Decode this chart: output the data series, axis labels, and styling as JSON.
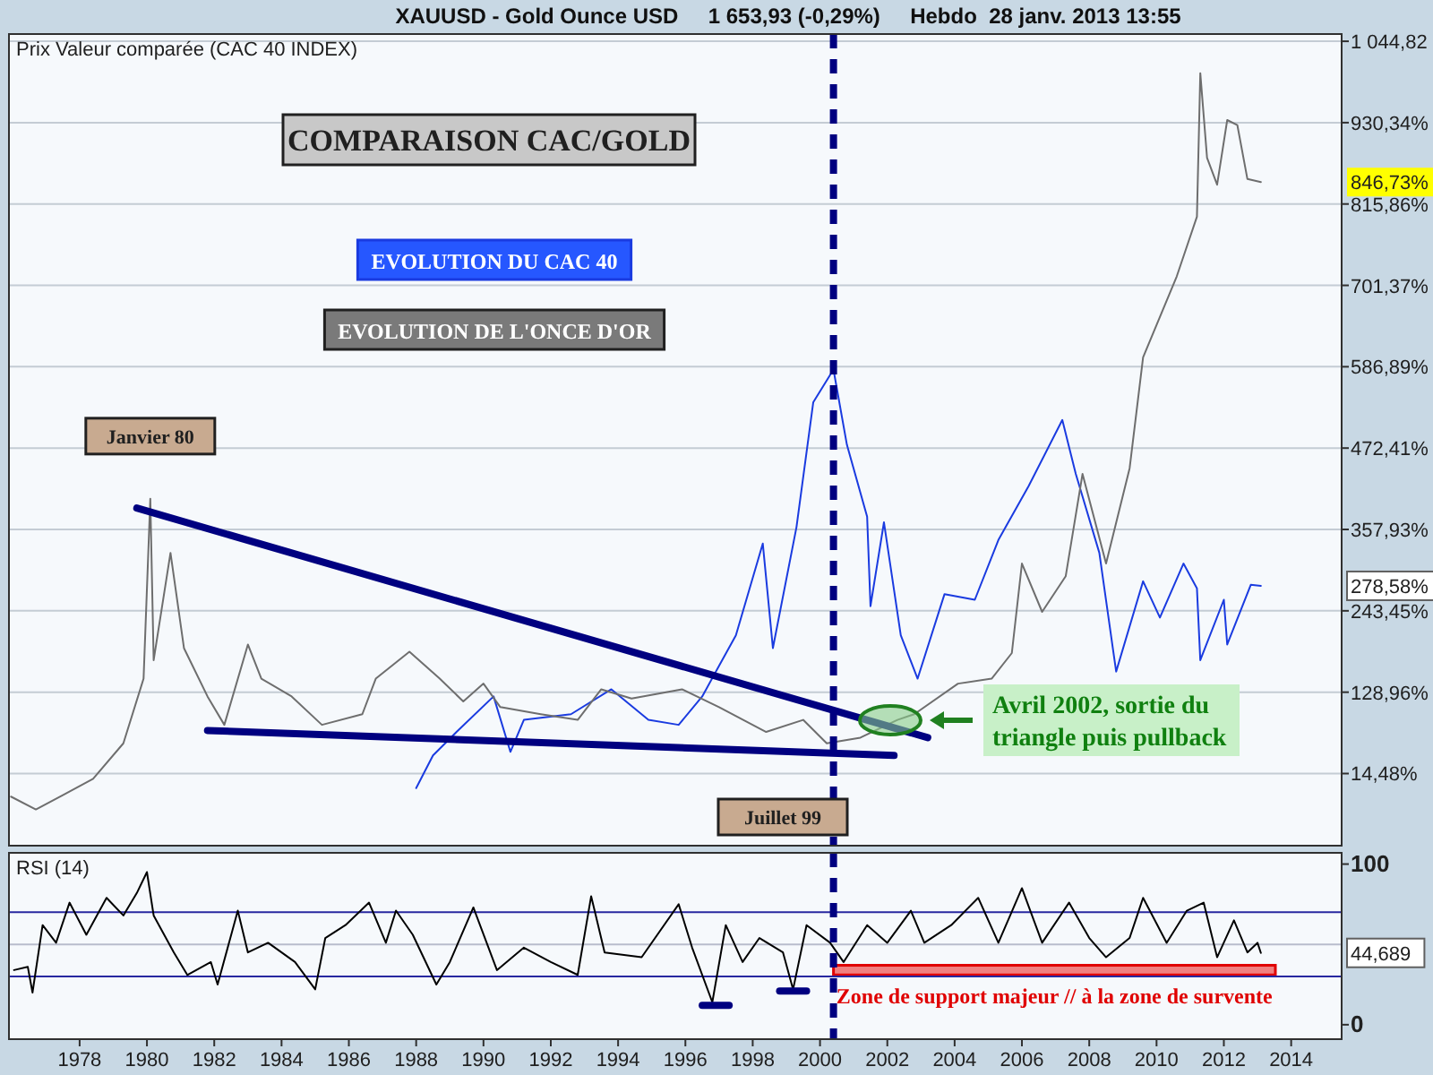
{
  "chart_data": [
    {
      "type": "line",
      "title": "COMPARAISON CAC/GOLD",
      "subtitle": "Prix Valeur comparée (CAC 40 INDEX)",
      "xlim": [
        1975.9,
        2015.5
      ],
      "xticks": [
        1978,
        1980,
        1982,
        1984,
        1986,
        1988,
        1990,
        1992,
        1994,
        1996,
        1998,
        2000,
        2002,
        2004,
        2006,
        2008,
        2010,
        2012,
        2014
      ],
      "ylim": [
        -87,
        1055
      ],
      "yticks": [
        {
          "value": 14.48,
          "label": "14,48%"
        },
        {
          "value": 128.96,
          "label": "128,96%"
        },
        {
          "value": 243.45,
          "label": "243,45%"
        },
        {
          "value": 357.93,
          "label": "357,93%"
        },
        {
          "value": 472.41,
          "label": "472,41%"
        },
        {
          "value": 586.89,
          "label": "586,89%"
        },
        {
          "value": 701.37,
          "label": "701,37%"
        },
        {
          "value": 815.86,
          "label": "815,86%"
        },
        {
          "value": 930.34,
          "label": "930,34%"
        },
        {
          "value": 1044.82,
          "label": "1 044,82"
        }
      ],
      "tick_labels": "y",
      "grid": "y",
      "legend": "top",
      "series": [
        {
          "name": "EVOLUTION DU CAC 40",
          "color": "#1a3be0",
          "x": [
            1988.0,
            1988.5,
            1989.2,
            1990.3,
            1990.8,
            1991.2,
            1992.6,
            1993.8,
            1994.9,
            1995.8,
            1996.5,
            1997.0,
            1997.5,
            1998.3,
            1998.6,
            1999.3,
            1999.8,
            2000.4,
            2000.8,
            2001.4,
            2001.5,
            2001.9,
            2002.4,
            2002.9,
            2003.7,
            2004.6,
            2005.3,
            2006.2,
            2007.2,
            2007.6,
            2008.3,
            2008.7,
            2008.8,
            2009.6,
            2010.1,
            2010.8,
            2011.2,
            2011.3,
            2012.0,
            2012.1,
            2012.8,
            2013.1
          ],
          "values": [
            -6,
            40,
            73,
            123,
            45,
            90,
            98,
            133,
            90,
            83,
            123,
            166,
            209,
            338,
            191,
            361,
            537,
            583,
            477,
            376,
            250,
            368,
            209,
            148,
            267,
            259,
            343,
            419,
            512,
            436,
            325,
            191,
            158,
            285,
            234,
            310,
            275,
            174,
            259,
            196,
            280,
            278.58
          ]
        },
        {
          "name": "EVOLUTION DE L'ONCE D'OR",
          "color": "#6e6e6e",
          "x": [
            1975.96,
            1976.7,
            1977.5,
            1978.4,
            1979.3,
            1979.9,
            1980.1,
            1980.2,
            1980.7,
            1981.1,
            1981.8,
            1982.3,
            1983.0,
            1983.4,
            1984.3,
            1985.2,
            1986.4,
            1986.8,
            1987.8,
            1988.7,
            1989.4,
            1990.0,
            1990.5,
            1991.7,
            1992.8,
            1993.5,
            1994.4,
            1995.9,
            1997.0,
            1998.4,
            1999.5,
            2000.2,
            2001.2,
            2002.3,
            2002.8,
            2004.1,
            2005.1,
            2005.7,
            2006.0,
            2006.6,
            2007.3,
            2007.8,
            2008.5,
            2009.2,
            2009.6,
            2010.6,
            2011.2,
            2011.3,
            2011.5,
            2011.8,
            2012.1,
            2012.4,
            2012.7,
            2013.1
          ],
          "values": [
            -18,
            -36,
            -16,
            7,
            57,
            148,
            401,
            174,
            325,
            191,
            123,
            83,
            196,
            148,
            123,
            83,
            98,
            148,
            186,
            148,
            116,
            141,
            108,
            98,
            90,
            133,
            120,
            133,
            108,
            73,
            90,
            57,
            65,
            90,
            98,
            141,
            148,
            184,
            310,
            242,
            292,
            436,
            310,
            444,
            600,
            714,
            798,
            1000,
            881,
            843,
            934,
            927,
            851,
            846.73
          ]
        },
        {
          "type": "line",
          "color": "#000080",
          "x": [
            1979.7,
            2003.2
          ],
          "values": [
            388,
            65
          ]
        },
        {
          "type": "line",
          "color": "#000080",
          "x": [
            1981.8,
            2002.2
          ],
          "values": [
            75,
            40
          ]
        }
      ],
      "ref_lines": [
        {
          "axis": "x",
          "value": 2000.4,
          "color": "#000080",
          "line_style": "dashed"
        }
      ],
      "annotations": [
        "XAUUSD - Gold Ounce USD     1 653,93 (-0,29%)     Hebdo  28 janv. 2013 13:55",
        {
          "text": "Janvier 80",
          "x": 1980.1,
          "y": 401
        },
        "Juillet 99",
        "Avril 2002, sortie du triangle puis pullback",
        "846,73%",
        "278,58%"
      ]
    },
    {
      "type": "line",
      "title": "RSI (14)",
      "xlim": [
        1975.9,
        2015.5
      ],
      "xticks": [
        1978,
        1980,
        1982,
        1984,
        1986,
        1988,
        1990,
        1992,
        1994,
        1996,
        1998,
        2000,
        2002,
        2004,
        2006,
        2008,
        2010,
        2012,
        2014
      ],
      "ylim": [
        -9,
        107
      ],
      "yticks": [
        0,
        100
      ],
      "series": [
        {
          "color": "#000000",
          "x": [
            1976.05,
            1976.46,
            1976.6,
            1976.9,
            1977.3,
            1977.7,
            1978.2,
            1978.8,
            1979.3,
            1979.7,
            1980.0,
            1980.2,
            1980.8,
            1981.2,
            1981.9,
            1982.1,
            1982.7,
            1983.0,
            1983.6,
            1984.4,
            1985.0,
            1985.3,
            1985.9,
            1986.6,
            1987.1,
            1987.4,
            1987.9,
            1988.6,
            1989.0,
            1989.7,
            1990.4,
            1991.2,
            1992.0,
            1992.8,
            1993.2,
            1993.6,
            1994.7,
            1995.8,
            1996.2,
            1996.8,
            1997.2,
            1997.7,
            1998.2,
            1998.9,
            1999.2,
            1999.6,
            2000.3,
            2000.7,
            2001.4,
            2002.0,
            2002.7,
            2003.1,
            2003.9,
            2004.7,
            2005.3,
            2006.0,
            2006.6,
            2007.4,
            2008.0,
            2008.5,
            2009.2,
            2009.6,
            2010.3,
            2010.9,
            2011.4,
            2011.8,
            2012.3,
            2012.7,
            2013.0,
            2013.1
          ],
          "values": [
            34,
            36,
            20,
            62,
            51,
            76,
            56,
            79,
            68,
            82,
            95,
            68,
            45,
            31,
            39,
            25,
            71,
            45,
            51,
            39,
            22,
            54,
            62,
            76,
            51,
            71,
            56,
            25,
            39,
            73,
            34,
            48,
            39,
            31,
            80,
            45,
            42,
            75,
            48,
            14,
            62,
            39,
            54,
            45,
            22,
            62,
            51,
            39,
            62,
            51,
            71,
            51,
            62,
            79,
            51,
            85,
            51,
            76,
            54,
            42,
            54,
            79,
            51,
            71,
            76,
            42,
            65,
            45,
            51,
            44.689
          ]
        },
        {
          "type": "line",
          "color": "#000080",
          "x": [
            1996.5,
            1997.3
          ],
          "values": [
            12,
            12
          ]
        },
        {
          "type": "line",
          "color": "#000080",
          "x": [
            1998.8,
            1999.6
          ],
          "values": [
            21,
            21
          ]
        }
      ],
      "ref_lines": [
        {
          "axis": "y",
          "value": 70,
          "color": "#2828a0"
        },
        {
          "axis": "y",
          "value": 30,
          "color": "#2828a0"
        },
        {
          "axis": "y",
          "value": 50,
          "color": "#b8bccc"
        },
        {
          "axis": "x",
          "value": 2000.4,
          "color": "#000080",
          "line_style": "dashed"
        }
      ],
      "bands": [
        {
          "axis": "y",
          "from": 31,
          "to": 37,
          "label": "Zone de support majeur // à la zone de survente",
          "color": "#f08080"
        }
      ],
      "annotations": [
        "44,689"
      ]
    }
  ]
}
